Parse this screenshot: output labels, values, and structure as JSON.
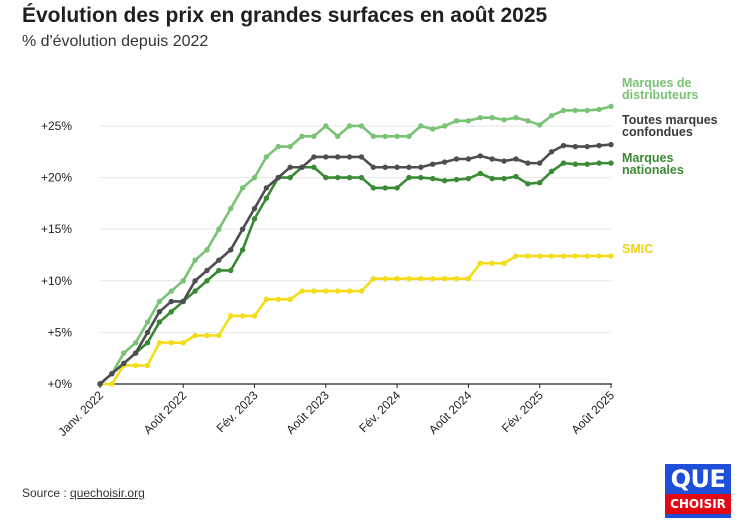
{
  "header": {
    "title": "Évolution des prix en grandes surfaces en août 2025",
    "subtitle": "% d'évolution depuis 2022"
  },
  "footer": {
    "source_prefix": "Source : ",
    "source_link": "quechoisir.org"
  },
  "logo": {
    "line1": "QUE",
    "line2": "CHOISIR"
  },
  "colors": {
    "distributeurs": "#7ac274",
    "toutes": "#4e4d52",
    "nationales": "#3a8a35",
    "smic": "#f5dc19",
    "axis": "#222222",
    "grid": "#e6e6e6"
  },
  "chart_data": {
    "type": "line",
    "title": "Évolution des prix en grandes surfaces en août 2025",
    "subtitle": "% d'évolution depuis 2022",
    "x": [
      "2022-01",
      "2022-02",
      "2022-03",
      "2022-04",
      "2022-05",
      "2022-06",
      "2022-07",
      "2022-08",
      "2022-09",
      "2022-10",
      "2022-11",
      "2022-12",
      "2023-01",
      "2023-02",
      "2023-03",
      "2023-04",
      "2023-05",
      "2023-06",
      "2023-07",
      "2023-08",
      "2023-09",
      "2023-10",
      "2023-11",
      "2023-12",
      "2024-01",
      "2024-02",
      "2024-03",
      "2024-04",
      "2024-05",
      "2024-06",
      "2024-07",
      "2024-08",
      "2024-09",
      "2024-10",
      "2024-11",
      "2024-12",
      "2025-01",
      "2025-02",
      "2025-03",
      "2025-04",
      "2025-05",
      "2025-06",
      "2025-07",
      "2025-08"
    ],
    "x_tick_labels": [
      {
        "x": "2022-01",
        "label": "Janv. 2022"
      },
      {
        "x": "2022-08",
        "label": "Août 2022"
      },
      {
        "x": "2023-02",
        "label": "Fév. 2023"
      },
      {
        "x": "2023-08",
        "label": "Août 2023"
      },
      {
        "x": "2024-02",
        "label": "Fév. 2024"
      },
      {
        "x": "2024-08",
        "label": "Août 2024"
      },
      {
        "x": "2025-02",
        "label": "Fév. 2025"
      },
      {
        "x": "2025-08",
        "label": "Août 2025"
      }
    ],
    "y_ticks": [
      0,
      5,
      10,
      15,
      20,
      25
    ],
    "y_tick_labels": [
      "+0%",
      "+5%",
      "+10%",
      "+15%",
      "+20%",
      "+25%"
    ],
    "ylim": [
      0,
      28
    ],
    "grid": true,
    "legend": "right-end-labels",
    "series": [
      {
        "key": "distributeurs",
        "name": "Marques de distributeurs",
        "label_lines": [
          "Marques de",
          "distributeurs"
        ],
        "values": [
          0,
          1,
          3,
          4,
          6,
          8,
          9,
          10,
          12,
          13,
          15,
          17,
          19,
          20,
          22,
          23,
          23,
          24,
          24,
          25,
          24,
          25,
          25,
          24,
          24,
          24,
          24,
          25,
          24.7,
          25,
          25.5,
          25.5,
          25.8,
          25.8,
          25.6,
          25.8,
          25.5,
          25.1,
          26,
          26.5,
          26.5,
          26.5,
          26.6,
          26.9
        ]
      },
      {
        "key": "toutes",
        "name": "Toutes marques confondues",
        "label_lines": [
          "Toutes marques",
          "confondues"
        ],
        "values": [
          0,
          1,
          2,
          3,
          5,
          7,
          8,
          8,
          10,
          11,
          12,
          13,
          15,
          17,
          19,
          20,
          21,
          21,
          22,
          22,
          22,
          22,
          22,
          21,
          21,
          21,
          21,
          21,
          21.3,
          21.5,
          21.8,
          21.8,
          22.1,
          21.8,
          21.6,
          21.8,
          21.4,
          21.4,
          22.5,
          23.1,
          23,
          23,
          23.1,
          23.2
        ]
      },
      {
        "key": "nationales",
        "name": "Marques nationales",
        "label_lines": [
          "Marques",
          "nationales"
        ],
        "values": [
          0,
          1,
          2,
          3,
          4,
          6,
          7,
          8,
          9,
          10,
          11,
          11,
          13,
          16,
          18,
          20,
          20,
          21,
          21,
          20,
          20,
          20,
          20,
          19,
          19,
          19,
          20,
          20,
          19.9,
          19.7,
          19.8,
          19.9,
          20.4,
          19.9,
          19.9,
          20.1,
          19.4,
          19.5,
          20.6,
          21.4,
          21.3,
          21.3,
          21.4,
          21.4
        ]
      },
      {
        "key": "smic",
        "name": "SMIC",
        "label_lines": [
          "SMIC"
        ],
        "values": [
          0,
          0,
          1.8,
          1.8,
          1.8,
          4,
          4,
          4,
          4.7,
          4.7,
          4.7,
          6.6,
          6.6,
          6.6,
          8.2,
          8.2,
          8.2,
          9,
          9,
          9,
          9,
          9,
          9,
          10.2,
          10.2,
          10.2,
          10.2,
          10.2,
          10.2,
          10.2,
          10.2,
          10.2,
          11.7,
          11.7,
          11.7,
          12.4,
          12.4,
          12.4,
          12.4,
          12.4,
          12.4,
          12.4,
          12.4,
          12.4
        ]
      }
    ]
  }
}
